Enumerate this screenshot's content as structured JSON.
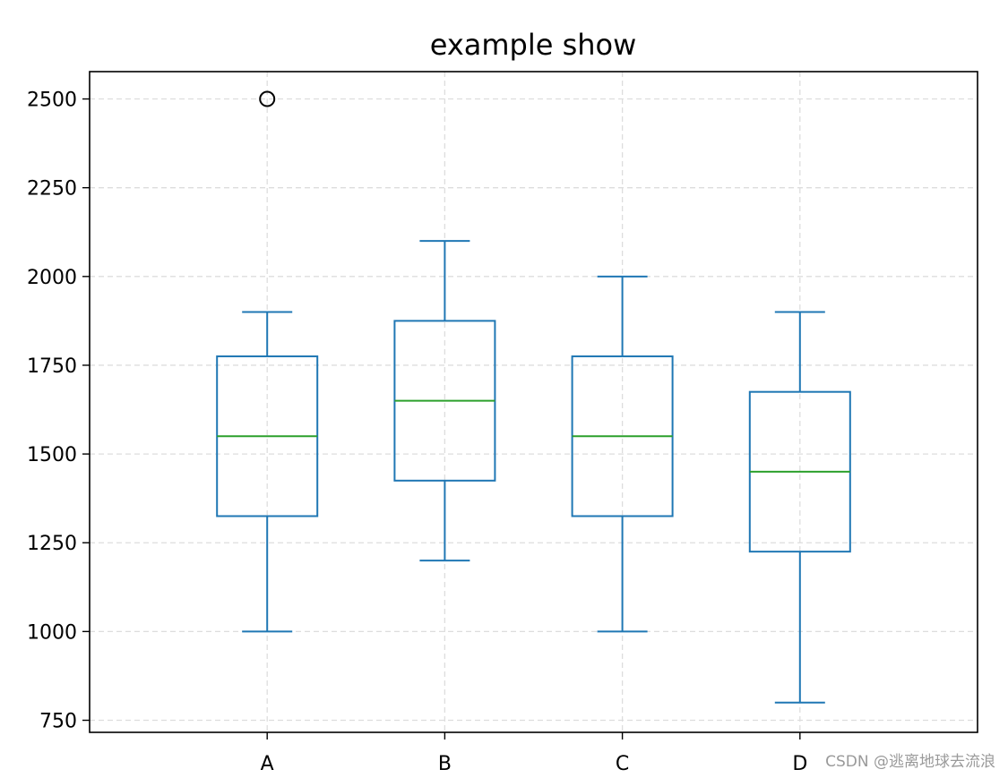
{
  "chart_data": {
    "type": "box",
    "title": "example show",
    "xlabel": "",
    "ylabel": "",
    "categories": [
      "A",
      "B",
      "C",
      "D"
    ],
    "boxes": [
      {
        "category": "A",
        "whisker_low": 1000,
        "q1": 1325,
        "median": 1550,
        "q3": 1775,
        "whisker_high": 1900,
        "outliers": [
          2500
        ]
      },
      {
        "category": "B",
        "whisker_low": 1200,
        "q1": 1425,
        "median": 1650,
        "q3": 1875,
        "whisker_high": 2100,
        "outliers": []
      },
      {
        "category": "C",
        "whisker_low": 1000,
        "q1": 1325,
        "median": 1550,
        "q3": 1775,
        "whisker_high": 2000,
        "outliers": []
      },
      {
        "category": "D",
        "whisker_low": 800,
        "q1": 1225,
        "median": 1450,
        "q3": 1675,
        "whisker_high": 1900,
        "outliers": []
      }
    ],
    "ylim": [
      716,
      2577
    ],
    "yticks": [
      750,
      1000,
      1250,
      1500,
      1750,
      2000,
      2250,
      2500
    ],
    "grid": true,
    "colors": {
      "box": "#1f77b4",
      "median": "#2ca02c",
      "outlier": "#000000",
      "grid": "#dddddd"
    }
  },
  "watermark": "CSDN @逃离地球去流浪"
}
